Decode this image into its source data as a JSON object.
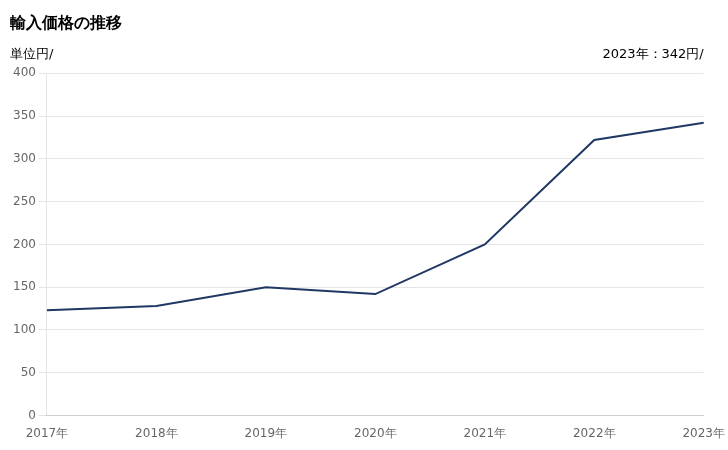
{
  "chart_data": {
    "type": "line",
    "title": "輸入価格の推移",
    "ylabel": "単位円/",
    "annotation": "2023年：342円/",
    "categories": [
      "2017年",
      "2018年",
      "2019年",
      "2020年",
      "2021年",
      "2022年",
      "2023年"
    ],
    "values": [
      123,
      128,
      150,
      142,
      200,
      322,
      342
    ],
    "color": "#1f3864",
    "ylim": [
      0,
      400
    ],
    "yticks": [
      0,
      50,
      100,
      150,
      200,
      250,
      300,
      350,
      400
    ],
    "grid": true
  }
}
